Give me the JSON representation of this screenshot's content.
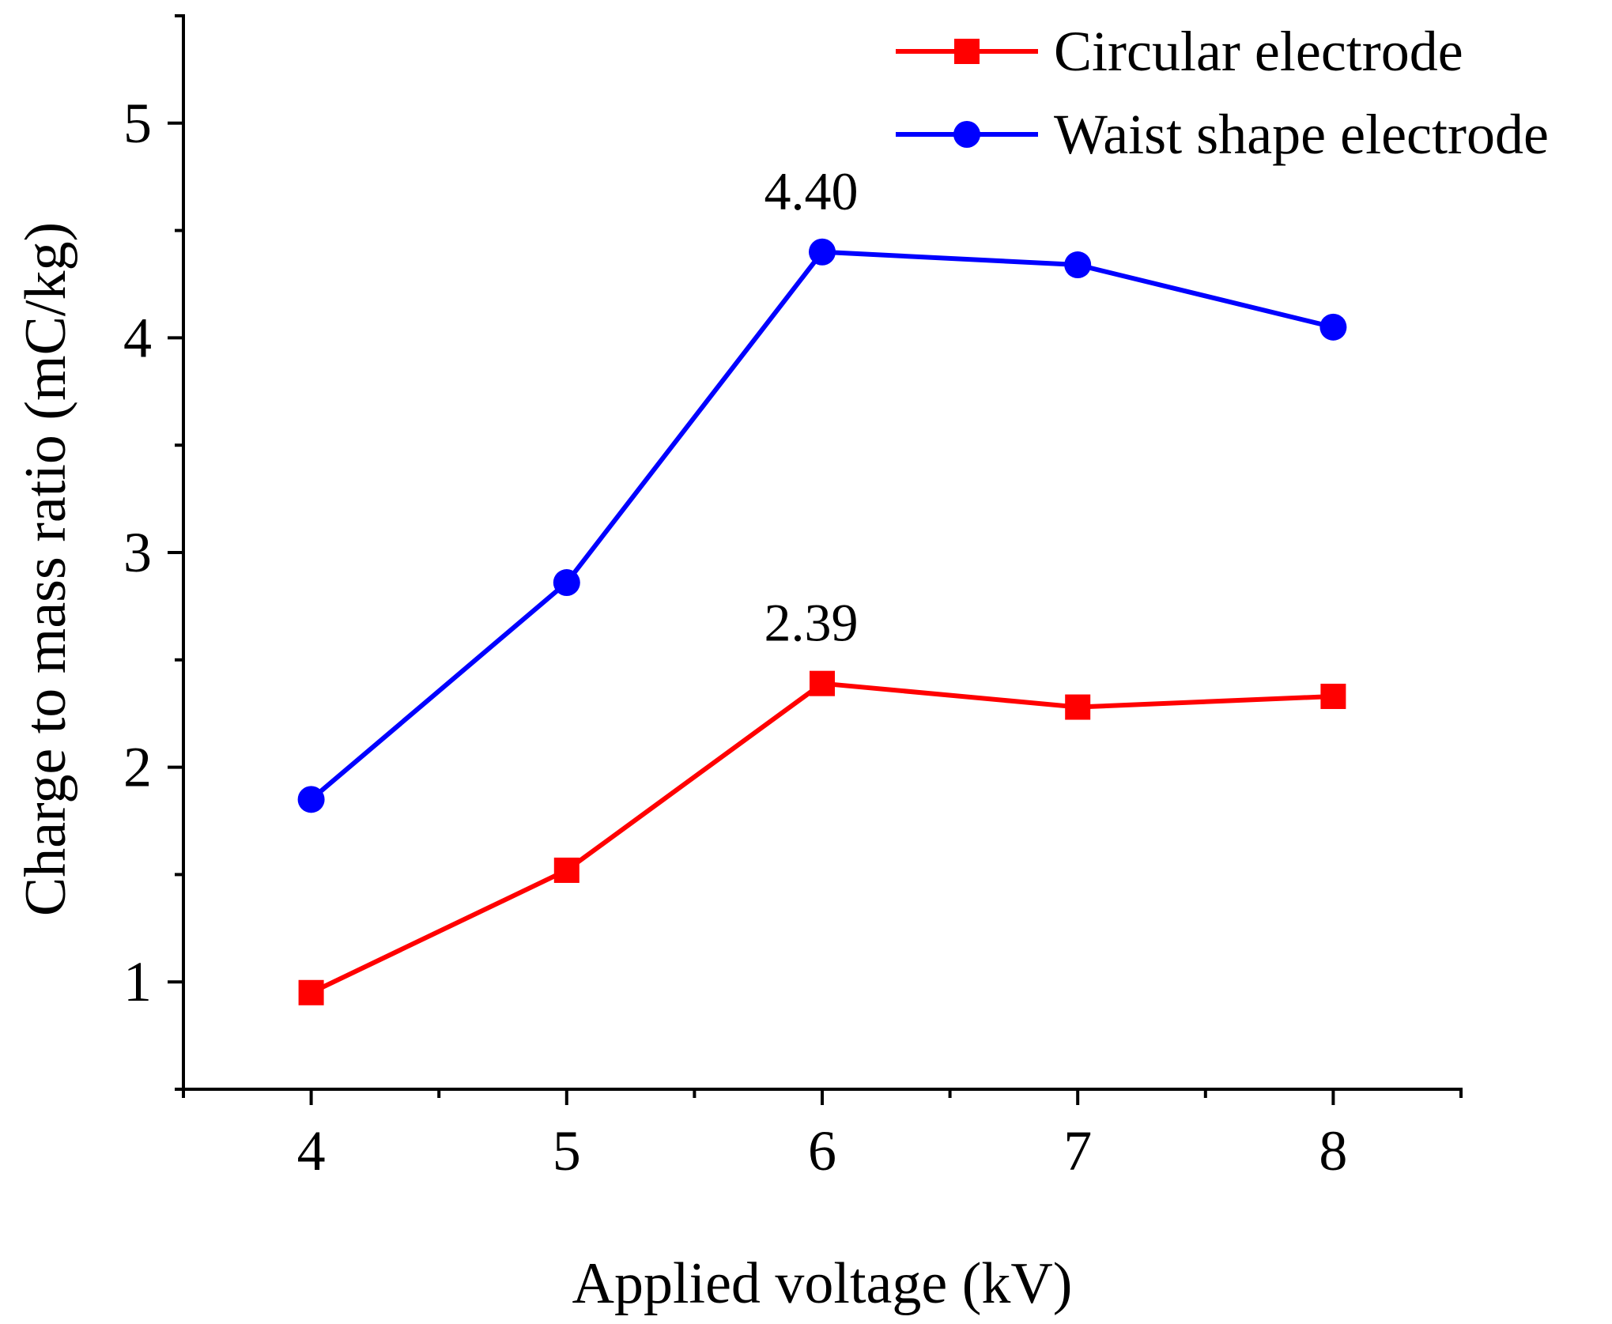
{
  "chart_data": {
    "type": "line",
    "x": [
      4,
      5,
      6,
      7,
      8
    ],
    "xlim": [
      3.5,
      8.5
    ],
    "ylim": [
      0.5,
      5.5
    ],
    "xticks": [
      4,
      5,
      6,
      7,
      8
    ],
    "yticks": [
      1,
      2,
      3,
      4,
      5
    ],
    "xtick_labels": [
      "4",
      "5",
      "6",
      "7",
      "8"
    ],
    "ytick_labels": [
      "1",
      "2",
      "3",
      "4",
      "5"
    ],
    "xlabel": "Applied voltage (kV)",
    "ylabel": "Charge to mass ratio (mC/kg)",
    "grid": false,
    "legend_position": "top-right",
    "series": [
      {
        "name": "Circular electrode",
        "color": "#ff0000",
        "marker": "square",
        "values": [
          0.95,
          1.52,
          2.39,
          2.28,
          2.33
        ]
      },
      {
        "name": "Waist shape electrode",
        "color": "#0000ff",
        "marker": "circle",
        "values": [
          1.85,
          2.86,
          4.4,
          4.34,
          4.05
        ]
      }
    ],
    "annotations": [
      {
        "text": "2.39",
        "x": 6,
        "y": 2.39,
        "series": 0
      },
      {
        "text": "4.40",
        "x": 6,
        "y": 4.4,
        "series": 1
      }
    ]
  }
}
